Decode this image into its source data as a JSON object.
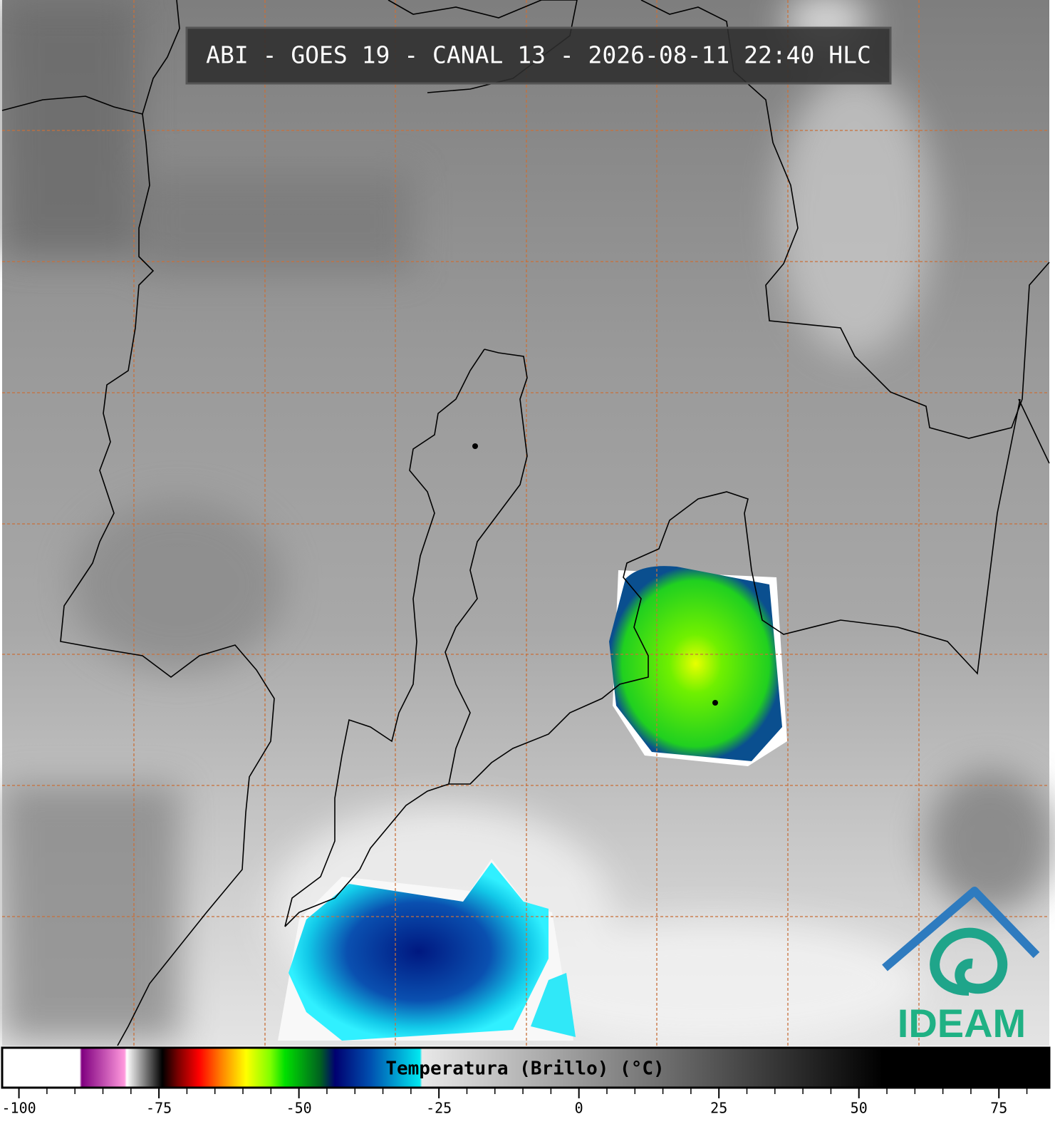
{
  "header": {
    "title": "ABI - GOES 19 - CANAL 13 - 2026-08-11 22:40 HLC"
  },
  "logo": {
    "text": "IDEAM"
  },
  "colorbar": {
    "label": "Temperatura (Brillo) (°C)",
    "lim": [
      -103,
      84
    ],
    "ticks": [
      -100,
      -75,
      -50,
      -25,
      0,
      25,
      50,
      75
    ],
    "minor_ticks": [
      -95,
      -90,
      -85,
      -80,
      -70,
      -65,
      -60,
      -55,
      -45,
      -40,
      -35,
      -30,
      -20,
      -15,
      -10,
      -5,
      5,
      10,
      15,
      20,
      30,
      35,
      40,
      45,
      55,
      60,
      65,
      70,
      80
    ]
  }
}
